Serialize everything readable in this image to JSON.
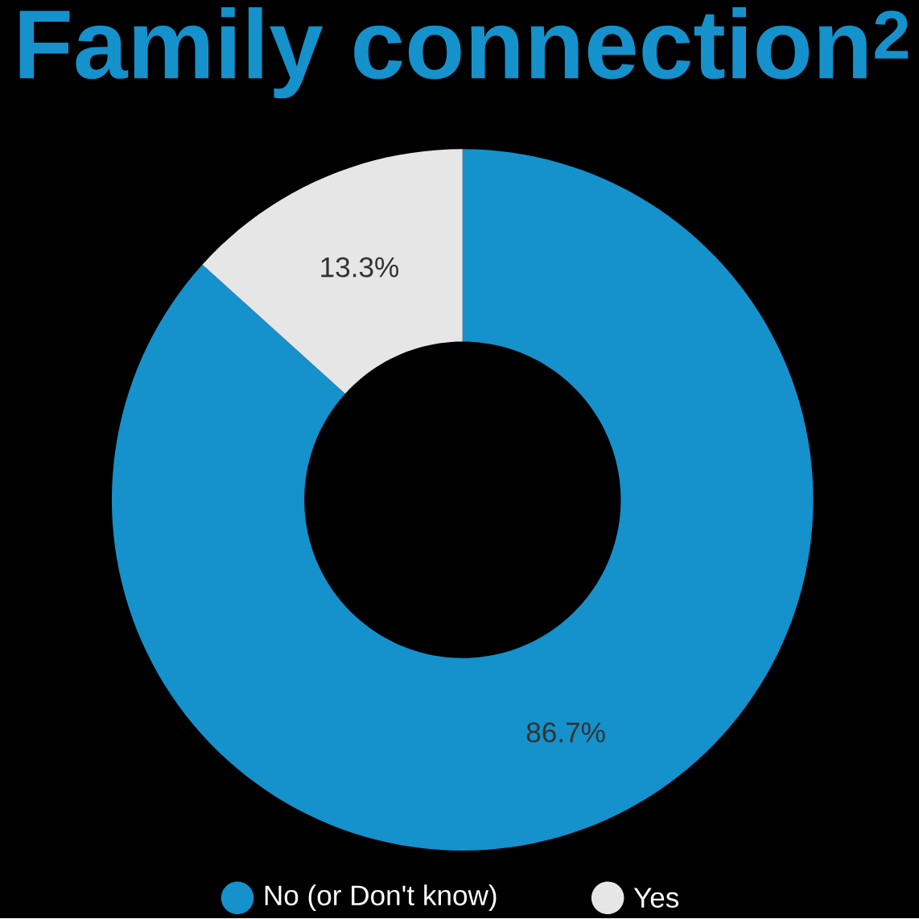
{
  "chart_data": {
    "type": "donut",
    "title": "Family connection$^{2}$",
    "categories": [
      "No (or Don't know)",
      "Yes"
    ],
    "values": [
      86.7,
      13.3
    ],
    "colors": [
      "#1591cc",
      "#e6e6e6"
    ],
    "value_labels": [
      "86.7%",
      "13.3%"
    ],
    "legend": "bottom"
  }
}
